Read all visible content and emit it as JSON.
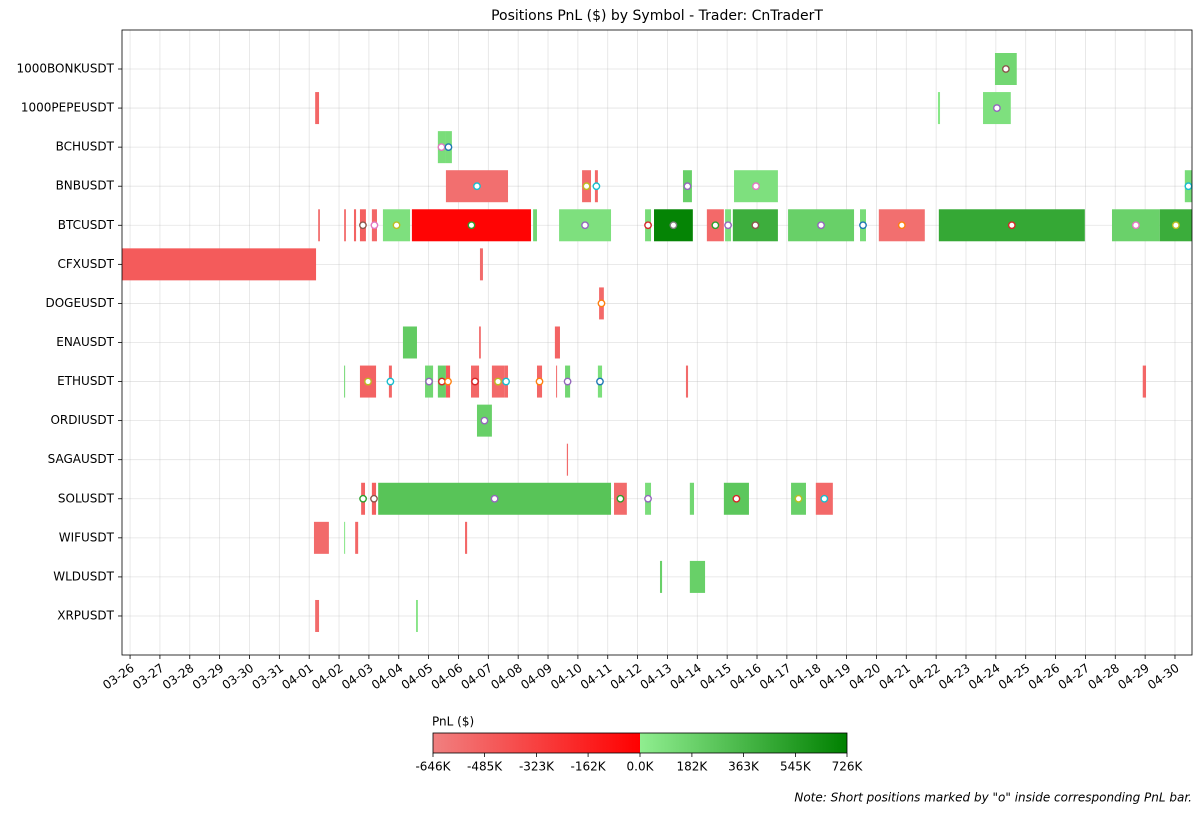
{
  "chart_data": {
    "type": "timeline",
    "title": "Positions PnL ($) by Symbol - Trader: CnTraderT",
    "categories": [
      "1000BONKUSDT",
      "1000PEPEUSDT",
      "BCHUSDT",
      "BNBUSDT",
      "BTCUSDT",
      "CFXUSDT",
      "DOGEUSDT",
      "ENAUSDT",
      "ETHUSDT",
      "ORDIUSDT",
      "SAGAUSDT",
      "SOLUSDT",
      "WIFUSDT",
      "WLDUSDT",
      "XRPUSDT"
    ],
    "xlim": [
      -0.27,
      35.57
    ],
    "xticks": [
      {
        "value": 0,
        "label": "03-26"
      },
      {
        "value": 1,
        "label": "03-27"
      },
      {
        "value": 2,
        "label": "03-28"
      },
      {
        "value": 3,
        "label": "03-29"
      },
      {
        "value": 4,
        "label": "03-30"
      },
      {
        "value": 5,
        "label": "03-31"
      },
      {
        "value": 6,
        "label": "04-01"
      },
      {
        "value": 7,
        "label": "04-02"
      },
      {
        "value": 8,
        "label": "04-03"
      },
      {
        "value": 9,
        "label": "04-04"
      },
      {
        "value": 10,
        "label": "04-05"
      },
      {
        "value": 11,
        "label": "04-06"
      },
      {
        "value": 12,
        "label": "04-07"
      },
      {
        "value": 13,
        "label": "04-08"
      },
      {
        "value": 14,
        "label": "04-09"
      },
      {
        "value": 15,
        "label": "04-10"
      },
      {
        "value": 16,
        "label": "04-11"
      },
      {
        "value": 17,
        "label": "04-12"
      },
      {
        "value": 18,
        "label": "04-13"
      },
      {
        "value": 19,
        "label": "04-14"
      },
      {
        "value": 20,
        "label": "04-15"
      },
      {
        "value": 21,
        "label": "04-16"
      },
      {
        "value": 22,
        "label": "04-17"
      },
      {
        "value": 23,
        "label": "04-18"
      },
      {
        "value": 24,
        "label": "04-19"
      },
      {
        "value": 25,
        "label": "04-20"
      },
      {
        "value": 26,
        "label": "04-21"
      },
      {
        "value": 27,
        "label": "04-22"
      },
      {
        "value": 28,
        "label": "04-23"
      },
      {
        "value": 29,
        "label": "04-24"
      },
      {
        "value": 30,
        "label": "04-25"
      },
      {
        "value": 31,
        "label": "04-26"
      },
      {
        "value": 32,
        "label": "04-27"
      },
      {
        "value": 33,
        "label": "04-28"
      },
      {
        "value": 34,
        "label": "04-29"
      },
      {
        "value": 35,
        "label": "04-30"
      }
    ],
    "grid": true,
    "bars": [
      {
        "row": 0,
        "start": 28.97,
        "end": 29.7,
        "value": 150000,
        "short_marker": "#8c564b"
      },
      {
        "row": 1,
        "start": 6.2,
        "end": 6.33,
        "value": -520000
      },
      {
        "row": 1,
        "start": 27.06,
        "end": 27.13,
        "value": 40000
      },
      {
        "row": 1,
        "start": 28.57,
        "end": 29.5,
        "value": 90000,
        "short_marker": "#9467bd"
      },
      {
        "row": 2,
        "start": 10.31,
        "end": 10.55,
        "value": 110000,
        "short_marker": "#e377c2"
      },
      {
        "row": 2,
        "start": 10.55,
        "end": 10.78,
        "value": 110000,
        "short_marker": "#1f77b4"
      },
      {
        "row": 3,
        "start": 10.58,
        "end": 12.66,
        "value": -560000,
        "short_marker": "#17becf"
      },
      {
        "row": 3,
        "start": 15.14,
        "end": 15.44,
        "value": -540000,
        "short_marker": "#bcbd22"
      },
      {
        "row": 3,
        "start": 15.57,
        "end": 15.67,
        "value": -520000,
        "short_marker": "#17becf"
      },
      {
        "row": 3,
        "start": 18.52,
        "end": 18.82,
        "value": 200000,
        "short_marker": "#9467bd"
      },
      {
        "row": 3,
        "start": 20.23,
        "end": 21.7,
        "value": 90000,
        "short_marker": "#e377c2"
      },
      {
        "row": 3,
        "start": 35.33,
        "end": 35.57,
        "value": 120000,
        "short_marker": "#17becf"
      },
      {
        "row": 4,
        "start": 6.3,
        "end": 6.36,
        "value": -560000
      },
      {
        "row": 4,
        "start": 7.17,
        "end": 7.23,
        "value": -540000
      },
      {
        "row": 4,
        "start": 7.5,
        "end": 7.57,
        "value": -500000
      },
      {
        "row": 4,
        "start": 7.7,
        "end": 7.9,
        "value": -480000,
        "short_marker": "#8c564b"
      },
      {
        "row": 4,
        "start": 8.1,
        "end": 8.27,
        "value": -520000,
        "short_marker": "#e377c2"
      },
      {
        "row": 4,
        "start": 8.47,
        "end": 9.38,
        "value": 90000,
        "short_marker": "#bcbd22"
      },
      {
        "row": 4,
        "start": 9.44,
        "end": 13.43,
        "value": -20000,
        "short_marker": "#2ca02c"
      },
      {
        "row": 4,
        "start": 13.5,
        "end": 13.63,
        "value": 150000
      },
      {
        "row": 4,
        "start": 14.37,
        "end": 16.11,
        "value": 90000,
        "short_marker": "#9467bd"
      },
      {
        "row": 4,
        "start": 17.25,
        "end": 17.45,
        "value": 120000,
        "short_marker": "#d62728"
      },
      {
        "row": 4,
        "start": 17.55,
        "end": 18.85,
        "value": 700000,
        "short_marker": "#7f7f7f"
      },
      {
        "row": 4,
        "start": 19.32,
        "end": 19.89,
        "value": -530000,
        "short_marker": "#2ca02c"
      },
      {
        "row": 4,
        "start": 19.93,
        "end": 20.13,
        "value": 100000,
        "short_marker": "#9467bd"
      },
      {
        "row": 4,
        "start": 20.19,
        "end": 21.7,
        "value": 420000,
        "short_marker": "#8c564b"
      },
      {
        "row": 4,
        "start": 22.04,
        "end": 24.25,
        "value": 200000,
        "short_marker": "#9467bd"
      },
      {
        "row": 4,
        "start": 24.45,
        "end": 24.65,
        "value": 120000,
        "short_marker": "#1f77b4"
      },
      {
        "row": 4,
        "start": 25.08,
        "end": 26.62,
        "value": -560000,
        "short_marker": "#ff7f0e"
      },
      {
        "row": 4,
        "start": 27.09,
        "end": 31.98,
        "value": 460000,
        "short_marker": "#d62728"
      },
      {
        "row": 4,
        "start": 32.89,
        "end": 34.49,
        "value": 190000,
        "short_marker": "#e377c2"
      },
      {
        "row": 4,
        "start": 34.49,
        "end": 35.57,
        "value": 430000,
        "short_marker": "#bcbd22"
      },
      {
        "row": 5,
        "start": -0.27,
        "end": 6.23,
        "value": -460000
      },
      {
        "row": 5,
        "start": 11.72,
        "end": 11.82,
        "value": -540000
      },
      {
        "row": 6,
        "start": 15.71,
        "end": 15.87,
        "value": -530000,
        "short_marker": "#ff7f0e"
      },
      {
        "row": 7,
        "start": 9.14,
        "end": 9.61,
        "value": 230000
      },
      {
        "row": 7,
        "start": 11.69,
        "end": 11.75,
        "value": -550000
      },
      {
        "row": 7,
        "start": 14.23,
        "end": 14.4,
        "value": -500000
      },
      {
        "row": 8,
        "start": 7.17,
        "end": 7.2,
        "value": 150000
      },
      {
        "row": 8,
        "start": 7.7,
        "end": 8.24,
        "value": -500000,
        "short_marker": "#bcbd22"
      },
      {
        "row": 8,
        "start": 8.67,
        "end": 8.77,
        "value": -520000,
        "short_marker": "#17becf"
      },
      {
        "row": 8,
        "start": 9.88,
        "end": 10.15,
        "value": 150000,
        "short_marker": "#9467bd"
      },
      {
        "row": 8,
        "start": 10.31,
        "end": 10.58,
        "value": 200000,
        "short_marker": "#d62728"
      },
      {
        "row": 8,
        "start": 10.58,
        "end": 10.72,
        "value": -450000,
        "short_marker": "#ff7f0e"
      },
      {
        "row": 8,
        "start": 11.42,
        "end": 11.69,
        "value": -520000,
        "short_marker": "#d62728"
      },
      {
        "row": 8,
        "start": 12.12,
        "end": 12.53,
        "value": -530000,
        "short_marker": "#bcbd22"
      },
      {
        "row": 8,
        "start": 12.53,
        "end": 12.66,
        "value": -530000,
        "short_marker": "#17becf"
      },
      {
        "row": 8,
        "start": 13.63,
        "end": 13.8,
        "value": -520000,
        "short_marker": "#ff7f0e"
      },
      {
        "row": 8,
        "start": 14.27,
        "end": 14.3,
        "value": -540000
      },
      {
        "row": 8,
        "start": 14.57,
        "end": 14.74,
        "value": 150000,
        "short_marker": "#9467bd"
      },
      {
        "row": 8,
        "start": 15.67,
        "end": 15.81,
        "value": 100000,
        "short_marker": "#1f77b4"
      },
      {
        "row": 8,
        "start": 18.62,
        "end": 18.69,
        "value": -540000
      },
      {
        "row": 8,
        "start": 33.92,
        "end": 34.03,
        "value": -520000
      },
      {
        "row": 9,
        "start": 11.62,
        "end": 12.12,
        "value": 200000,
        "short_marker": "#9467bd"
      },
      {
        "row": 10,
        "start": 14.63,
        "end": 14.67,
        "value": -540000
      },
      {
        "row": 11,
        "start": 7.74,
        "end": 7.87,
        "value": -500000,
        "short_marker": "#2ca02c"
      },
      {
        "row": 11,
        "start": 8.1,
        "end": 8.24,
        "value": -480000,
        "short_marker": "#8c564b"
      },
      {
        "row": 11,
        "start": 8.31,
        "end": 16.11,
        "value": 280000,
        "short_marker": "#9467bd"
      },
      {
        "row": 11,
        "start": 16.21,
        "end": 16.64,
        "value": -540000,
        "short_marker": "#2ca02c"
      },
      {
        "row": 11,
        "start": 17.25,
        "end": 17.45,
        "value": 110000,
        "short_marker": "#9467bd"
      },
      {
        "row": 11,
        "start": 18.75,
        "end": 18.89,
        "value": 150000
      },
      {
        "row": 11,
        "start": 19.89,
        "end": 20.73,
        "value": 260000,
        "short_marker": "#d62728"
      },
      {
        "row": 11,
        "start": 22.14,
        "end": 22.64,
        "value": 200000,
        "short_marker": "#bcbd22"
      },
      {
        "row": 11,
        "start": 22.97,
        "end": 23.54,
        "value": -530000,
        "short_marker": "#17becf"
      },
      {
        "row": 12,
        "start": 6.16,
        "end": 6.66,
        "value": -540000
      },
      {
        "row": 12,
        "start": 7.17,
        "end": 7.2,
        "value": 60000
      },
      {
        "row": 12,
        "start": 7.54,
        "end": 7.64,
        "value": -520000
      },
      {
        "row": 12,
        "start": 11.22,
        "end": 11.29,
        "value": -520000
      },
      {
        "row": 13,
        "start": 17.75,
        "end": 17.82,
        "value": 200000
      },
      {
        "row": 13,
        "start": 18.75,
        "end": 19.26,
        "value": 200000
      },
      {
        "row": 14,
        "start": 6.2,
        "end": 6.33,
        "value": -540000
      },
      {
        "row": 14,
        "start": 9.58,
        "end": 9.64,
        "value": 80000
      }
    ],
    "colormap": {
      "negative": [
        "#f08080",
        "#ff0000"
      ],
      "positive": [
        "#90ee90",
        "#008000"
      ]
    },
    "colorbar_label": "PnL ($)",
    "clim": [
      -646000,
      726000
    ],
    "cticks": [
      {
        "value": -646000,
        "label": "-646K"
      },
      {
        "value": -485000,
        "label": "-485K"
      },
      {
        "value": -323000,
        "label": "-323K"
      },
      {
        "value": -162000,
        "label": "-162K"
      },
      {
        "value": 0,
        "label": "0.0K"
      },
      {
        "value": 182000,
        "label": "182K"
      },
      {
        "value": 363000,
        "label": "363K"
      },
      {
        "value": 545000,
        "label": "545K"
      },
      {
        "value": 726000,
        "label": "726K"
      }
    ],
    "note": "Note: Short positions marked by \"o\" inside corresponding PnL bar."
  }
}
